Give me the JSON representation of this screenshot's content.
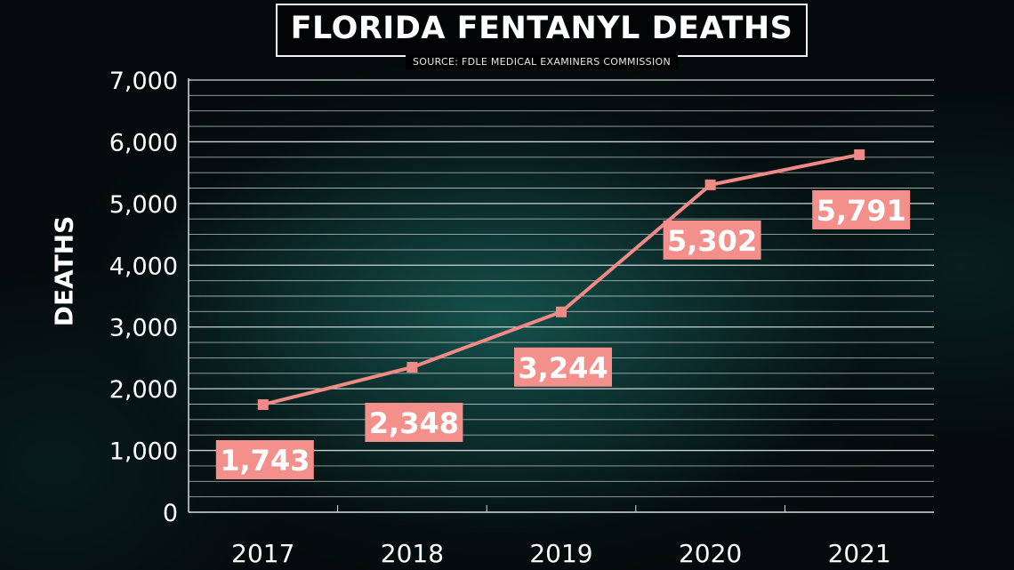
{
  "chart_data": {
    "type": "line",
    "title": "FLORIDA FENTANYL DEATHS",
    "subtitle": "SOURCE: FDLE MEDICAL EXAMINERS COMMISSION",
    "ylabel": "DEATHS",
    "xlabel": "",
    "categories": [
      "2017",
      "2018",
      "2019",
      "2020",
      "2021"
    ],
    "series": [
      {
        "values": [
          1743,
          2348,
          3244,
          5302,
          5791
        ],
        "data_labels": [
          "1,743",
          "2,348",
          "3,244",
          "5,302",
          "5,791"
        ]
      }
    ],
    "ylim": [
      0,
      7000
    ],
    "yticks": [
      0,
      1000,
      2000,
      3000,
      4000,
      5000,
      6000,
      7000
    ],
    "ytick_labels": [
      "0",
      "1,000",
      "2,000",
      "3,000",
      "4,000",
      "5,000",
      "6,000",
      "7,000"
    ],
    "grid": true,
    "legend": "none",
    "colors": {
      "line": "#f08a86",
      "label_bg": "#f3908c",
      "label_text": "#ffffff",
      "grid": "#d8dcdc",
      "axis_text": "#ffffff"
    }
  }
}
